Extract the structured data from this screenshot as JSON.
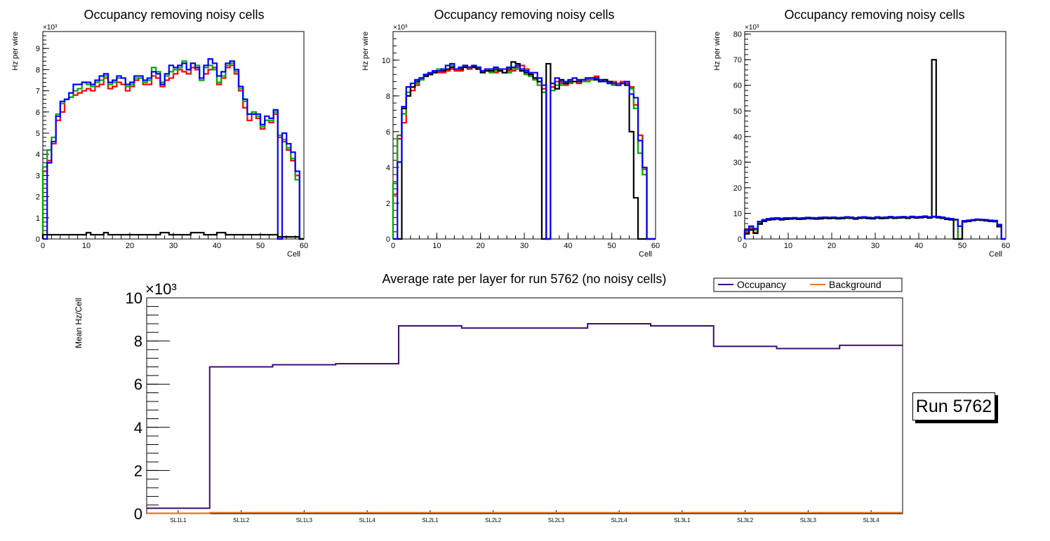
{
  "panels": [
    {
      "title": "Occupancy removing noisy cells",
      "ylabel": "Hz per wire",
      "xlabel": "Cell",
      "yexp": "×10³",
      "xlim": [
        0,
        60
      ],
      "ylim": [
        0,
        9.8
      ],
      "yticks": [
        "0",
        "1",
        "2",
        "3",
        "4",
        "5",
        "6",
        "7",
        "8",
        "9"
      ],
      "xticks": [
        "0",
        "10",
        "20",
        "30",
        "40",
        "50",
        "60"
      ],
      "series": [
        {
          "color": "#ff0000",
          "values": [
            3.2,
            3.7,
            4.5,
            5.6,
            6.0,
            6.6,
            6.7,
            6.8,
            6.9,
            7.0,
            7.1,
            7.0,
            7.2,
            7.3,
            7.6,
            7.1,
            7.2,
            7.4,
            7.3,
            7.0,
            7.2,
            7.5,
            7.6,
            7.3,
            7.3,
            7.7,
            7.6,
            7.2,
            7.5,
            7.6,
            7.8,
            8.0,
            7.9,
            7.8,
            8.1,
            8.0,
            7.5,
            7.8,
            8.0,
            8.1,
            7.3,
            7.6,
            8.1,
            8.2,
            7.8,
            7.0,
            6.2,
            5.6,
            5.9,
            5.7,
            5.2,
            5.6,
            5.5,
            5.9,
            4.8,
            4.6,
            4.2,
            3.7,
            3.0,
            0
          ]
        },
        {
          "color": "#00aa00",
          "values": [
            3.4,
            4.2,
            4.8,
            5.9,
            6.4,
            6.6,
            6.7,
            7.0,
            7.1,
            7.4,
            7.3,
            7.2,
            7.4,
            7.5,
            7.7,
            7.3,
            7.4,
            7.6,
            7.6,
            7.2,
            7.3,
            7.6,
            7.6,
            7.4,
            7.5,
            8.1,
            7.9,
            7.4,
            7.7,
            7.9,
            8.0,
            8.1,
            8.4,
            8.0,
            8.3,
            8.2,
            7.5,
            8.1,
            8.2,
            8.0,
            7.4,
            7.7,
            8.2,
            8.3,
            7.9,
            7.1,
            6.5,
            5.9,
            6.0,
            5.8,
            5.3,
            5.6,
            5.6,
            6.0,
            4.9,
            4.7,
            4.3,
            3.8,
            2.8,
            0
          ]
        },
        {
          "color": "#0000ff",
          "values": [
            0,
            3.6,
            4.6,
            5.8,
            6.5,
            6.6,
            6.9,
            7.3,
            7.3,
            7.4,
            7.4,
            7.3,
            7.5,
            7.7,
            7.8,
            7.4,
            7.5,
            7.7,
            7.6,
            7.3,
            7.4,
            7.7,
            7.7,
            7.5,
            7.6,
            7.9,
            7.8,
            7.3,
            7.8,
            8.2,
            8.1,
            8.2,
            8.3,
            8.0,
            8.3,
            8.1,
            7.6,
            8.2,
            8.5,
            8.3,
            7.7,
            7.9,
            8.3,
            8.4,
            8.0,
            7.2,
            6.6,
            5.9,
            5.9,
            5.9,
            5.4,
            5.8,
            5.7,
            6.1,
            0,
            5.0,
            4.5,
            4.1,
            3.2,
            0
          ]
        },
        {
          "color": "#000000",
          "values": [
            0.2,
            0.2,
            0.2,
            0.2,
            0.2,
            0.2,
            0.2,
            0.2,
            0.2,
            0.2,
            0.3,
            0.2,
            0.2,
            0.2,
            0.3,
            0.2,
            0.2,
            0.2,
            0.2,
            0.2,
            0.2,
            0.2,
            0.2,
            0.2,
            0.2,
            0.2,
            0.2,
            0.3,
            0.3,
            0.2,
            0.2,
            0.2,
            0.2,
            0.2,
            0.3,
            0.3,
            0.3,
            0.2,
            0.2,
            0.2,
            0.3,
            0.3,
            0.2,
            0.2,
            0.2,
            0.2,
            0.2,
            0.2,
            0.2,
            0.2,
            0.2,
            0.2,
            0.2,
            0.2,
            0.1,
            0.1,
            0.1,
            0.1,
            0.1,
            0
          ]
        }
      ]
    },
    {
      "title": "Occupancy removing noisy cells",
      "ylabel": "Hz per wire",
      "xlabel": "Cell",
      "yexp": "×10³",
      "xlim": [
        0,
        60
      ],
      "ylim": [
        0,
        11.6
      ],
      "yticks": [
        "0",
        "2",
        "4",
        "6",
        "8",
        "10"
      ],
      "xticks": [
        "0",
        "10",
        "20",
        "30",
        "40",
        "50",
        "60"
      ],
      "series": [
        {
          "color": "#ff0000",
          "values": [
            2.5,
            5.6,
            6.5,
            8.0,
            8.3,
            8.6,
            8.9,
            9.1,
            9.2,
            9.3,
            9.3,
            9.3,
            9.4,
            9.5,
            9.4,
            9.4,
            9.6,
            9.5,
            9.6,
            9.6,
            9.4,
            9.5,
            9.4,
            9.3,
            9.4,
            9.3,
            9.4,
            9.4,
            9.6,
            9.7,
            9.5,
            9.2,
            9.0,
            8.8,
            8.4,
            0,
            8.5,
            8.8,
            8.7,
            8.6,
            8.7,
            8.8,
            8.7,
            8.8,
            8.9,
            9.0,
            9.1,
            8.9,
            8.9,
            8.8,
            8.8,
            8.7,
            8.8,
            8.7,
            8.5,
            7.5,
            5.8,
            3.9,
            0,
            0
          ]
        },
        {
          "color": "#00aa00",
          "values": [
            3.1,
            5.8,
            7.0,
            8.2,
            8.5,
            8.7,
            8.9,
            9.1,
            9.2,
            9.4,
            9.5,
            9.4,
            9.5,
            9.7,
            9.5,
            9.5,
            9.7,
            9.6,
            9.6,
            9.5,
            9.4,
            9.4,
            9.3,
            9.4,
            9.5,
            9.3,
            9.3,
            9.5,
            9.5,
            9.4,
            9.2,
            9.1,
            8.9,
            8.6,
            8.2,
            0,
            8.3,
            8.6,
            8.6,
            8.7,
            8.7,
            8.8,
            8.8,
            8.8,
            8.8,
            8.9,
            9.0,
            8.8,
            8.8,
            8.7,
            8.6,
            8.6,
            8.7,
            8.6,
            8.4,
            7.3,
            4.8,
            3.6,
            0,
            0
          ]
        },
        {
          "color": "#000000",
          "values": [
            0,
            0,
            7.3,
            8.0,
            8.5,
            8.8,
            9.0,
            9.1,
            9.2,
            9.3,
            9.4,
            9.4,
            9.5,
            9.6,
            9.5,
            9.5,
            9.6,
            9.6,
            9.6,
            9.5,
            9.3,
            9.4,
            9.4,
            9.5,
            9.4,
            9.3,
            9.5,
            9.9,
            9.8,
            9.4,
            9.3,
            9.2,
            9.0,
            8.8,
            0,
            9.8,
            8.7,
            8.4,
            8.9,
            8.7,
            8.8,
            8.8,
            8.8,
            8.9,
            9.0,
            9.0,
            8.9,
            8.8,
            8.9,
            8.8,
            8.7,
            8.6,
            8.7,
            8.6,
            6.0,
            2.3,
            0,
            0,
            0,
            0
          ]
        },
        {
          "color": "#0000ff",
          "values": [
            0,
            4.3,
            7.4,
            8.5,
            8.7,
            8.9,
            9.0,
            9.2,
            9.3,
            9.4,
            9.4,
            9.5,
            9.7,
            9.8,
            9.5,
            9.6,
            9.7,
            9.6,
            9.7,
            9.6,
            9.4,
            9.5,
            9.5,
            9.6,
            9.5,
            9.5,
            9.6,
            9.6,
            9.7,
            9.5,
            9.4,
            9.3,
            9.3,
            9.0,
            8.6,
            0,
            8.7,
            9.0,
            8.8,
            8.8,
            8.9,
            9.0,
            8.9,
            8.9,
            9.0,
            9.0,
            9.0,
            8.9,
            8.8,
            8.7,
            8.7,
            8.6,
            8.7,
            8.8,
            8.1,
            7.9,
            5.5,
            4.0,
            0,
            0
          ]
        }
      ]
    },
    {
      "title": "Occupancy removing noisy cells",
      "ylabel": "Hz per wire",
      "xlabel": "Cell",
      "yexp": "×10³",
      "xlim": [
        0,
        60
      ],
      "ylim": [
        0,
        81
      ],
      "yticks": [
        "0",
        "10",
        "20",
        "30",
        "40",
        "50",
        "60",
        "70",
        "80"
      ],
      "xticks": [
        "0",
        "10",
        "20",
        "30",
        "40",
        "50",
        "60"
      ],
      "series": [
        {
          "color": "#ff0000",
          "values": [
            2.5,
            4.0,
            2.5,
            6.0,
            7.0,
            7.5,
            7.8,
            7.9,
            7.6,
            7.8,
            7.9,
            8.0,
            7.8,
            7.9,
            8.1,
            8.0,
            7.9,
            8.0,
            8.2,
            8.1,
            8.2,
            8.0,
            8.1,
            8.3,
            8.2,
            7.9,
            8.2,
            8.3,
            8.1,
            8.0,
            8.3,
            8.1,
            8.2,
            8.4,
            8.2,
            8.3,
            8.4,
            8.2,
            8.5,
            8.3,
            8.4,
            8.6,
            8.3,
            8.5,
            8.4,
            8.2,
            7.8,
            7.6,
            7.4,
            0,
            6.8,
            7.0,
            7.3,
            7.5,
            7.4,
            7.2,
            7.0,
            6.9,
            5.0,
            0
          ]
        },
        {
          "color": "#00aa00",
          "values": [
            3.0,
            4.5,
            3.5,
            6.5,
            7.2,
            7.7,
            7.9,
            8.0,
            7.8,
            8.0,
            8.0,
            8.1,
            7.9,
            8.0,
            8.2,
            8.1,
            8.0,
            8.2,
            8.3,
            8.2,
            8.3,
            8.1,
            8.2,
            8.4,
            8.3,
            8.0,
            8.3,
            8.4,
            8.2,
            8.1,
            8.4,
            8.2,
            8.3,
            8.5,
            8.3,
            8.4,
            8.5,
            8.3,
            8.6,
            8.4,
            8.5,
            8.7,
            8.4,
            8.6,
            8.5,
            8.3,
            7.9,
            7.8,
            7.5,
            0,
            7.0,
            7.2,
            7.4,
            7.6,
            7.5,
            7.4,
            7.2,
            7.0,
            5.5,
            0
          ]
        },
        {
          "color": "#000000",
          "values": [
            2.0,
            3.5,
            2.2,
            5.8,
            6.9,
            7.4,
            7.6,
            7.8,
            7.5,
            7.7,
            7.8,
            7.9,
            7.7,
            7.8,
            8.0,
            7.9,
            7.8,
            7.9,
            8.1,
            8.0,
            8.1,
            7.9,
            8.0,
            8.2,
            8.1,
            7.8,
            8.1,
            8.2,
            8.0,
            7.9,
            8.2,
            8.0,
            8.1,
            8.3,
            8.1,
            8.2,
            8.3,
            8.1,
            8.4,
            8.2,
            8.3,
            8.5,
            8.2,
            70.0,
            8.3,
            8.1,
            7.7,
            7.5,
            0,
            0,
            6.7,
            6.9,
            7.2,
            7.4,
            7.3,
            7.1,
            6.9,
            6.8,
            4.8,
            0
          ]
        },
        {
          "color": "#0000ff",
          "values": [
            3.5,
            5.0,
            4.0,
            6.8,
            7.5,
            7.9,
            8.1,
            8.2,
            8.0,
            8.2,
            8.2,
            8.3,
            8.1,
            8.2,
            8.4,
            8.3,
            8.2,
            8.4,
            8.5,
            8.4,
            8.5,
            8.3,
            8.4,
            8.6,
            8.5,
            8.2,
            8.5,
            8.6,
            8.4,
            8.3,
            8.6,
            8.4,
            8.5,
            8.7,
            8.5,
            8.6,
            8.7,
            8.5,
            8.8,
            8.6,
            8.7,
            8.9,
            8.6,
            8.8,
            8.7,
            8.5,
            8.1,
            7.9,
            7.6,
            5.0,
            7.1,
            7.3,
            7.5,
            7.7,
            7.6,
            7.5,
            7.3,
            7.2,
            5.6,
            0
          ]
        }
      ]
    }
  ],
  "chart_data": {
    "type": "line",
    "title": "Average rate per layer for run 5762 (no noisy cells)",
    "xlabel": "",
    "ylabel": "Mean Hz/Cell",
    "yexp": "×10³",
    "ylim": [
      0,
      10
    ],
    "yticks": [
      "0",
      "2",
      "4",
      "6",
      "8",
      "10"
    ],
    "categories": [
      "SL1L1",
      "SL1L2",
      "SL1L3",
      "SL1L4",
      "SL2L1",
      "SL2L2",
      "SL2L3",
      "SL2L4",
      "SL3L1",
      "SL3L2",
      "SL3L3",
      "SL3L4"
    ],
    "series": [
      {
        "name": "Occupancy",
        "color": "#3d0c7a",
        "values": [
          0.25,
          6.8,
          6.9,
          6.95,
          8.7,
          8.6,
          8.6,
          8.8,
          8.7,
          7.75,
          7.65,
          7.8
        ]
      },
      {
        "name": "Background",
        "color": "#e87722",
        "values": [
          0.02,
          0.05,
          0.05,
          0.05,
          0.05,
          0.05,
          0.05,
          0.05,
          0.05,
          0.05,
          0.05,
          0.05
        ]
      }
    ],
    "legend_position": "top-right"
  },
  "run_label": "Run 5762"
}
